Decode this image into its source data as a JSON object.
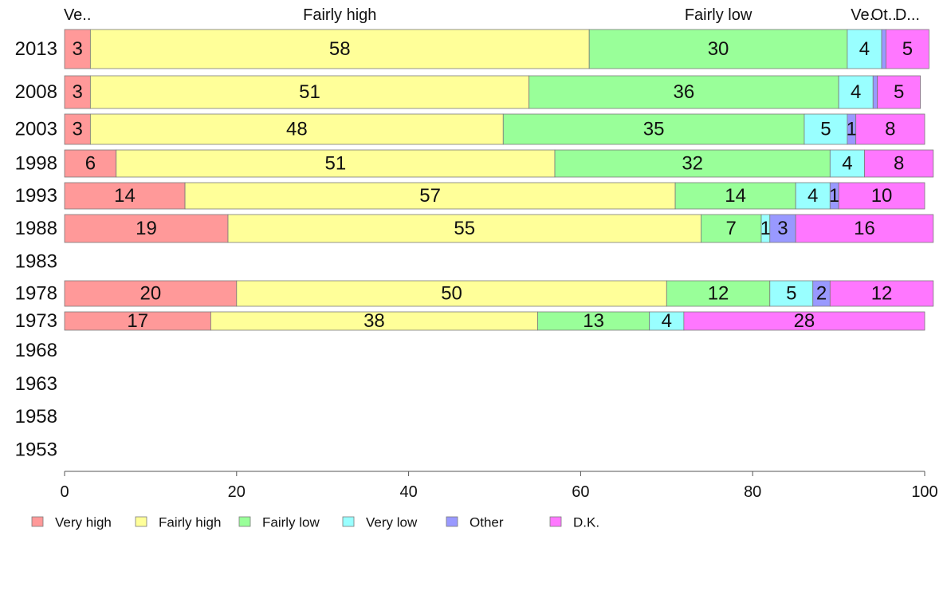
{
  "chart_data": {
    "type": "bar",
    "orientation": "horizontal",
    "stacked": true,
    "title": "",
    "xlabel": "",
    "ylabel": "",
    "xlim": [
      0,
      100
    ],
    "x_ticks": [
      0,
      20,
      40,
      60,
      80,
      100
    ],
    "grid": false,
    "legend_position": "bottom",
    "categories": [
      "2013",
      "2008",
      "2003",
      "1998",
      "1993",
      "1988",
      "1983",
      "1978",
      "1973",
      "1968",
      "1963",
      "1958",
      "1953"
    ],
    "series": [
      {
        "name": "Very high",
        "short_label": "Ve..",
        "color": "#ff9999",
        "values": [
          3,
          3,
          3,
          6,
          14,
          19,
          null,
          20,
          17,
          null,
          null,
          null,
          null
        ]
      },
      {
        "name": "Fairly high",
        "short_label": "Fairly high",
        "color": "#ffff99",
        "values": [
          58,
          51,
          48,
          51,
          57,
          55,
          null,
          50,
          38,
          null,
          null,
          null,
          null
        ]
      },
      {
        "name": "Fairly low",
        "short_label": "Fairly low",
        "color": "#99ff99",
        "values": [
          30,
          36,
          35,
          32,
          14,
          7,
          null,
          12,
          13,
          null,
          null,
          null,
          null
        ]
      },
      {
        "name": "Very low",
        "short_label": "Ve..",
        "color": "#99ffff",
        "values": [
          4,
          4,
          5,
          4,
          4,
          1,
          null,
          5,
          4,
          null,
          null,
          null,
          null
        ]
      },
      {
        "name": "Other",
        "short_label": "Ot..",
        "color": "#9999ff",
        "values": [
          0.5,
          0.5,
          1,
          0,
          1,
          3,
          null,
          2,
          0,
          null,
          null,
          null,
          null
        ]
      },
      {
        "name": "D.K.",
        "short_label": "D...",
        "color": "#ff77ff",
        "values": [
          5,
          5,
          8,
          8,
          10,
          16,
          null,
          12,
          28,
          null,
          null,
          null,
          null
        ]
      }
    ],
    "bar_labels": [
      [
        "3",
        "58",
        "30",
        "4",
        "",
        "5"
      ],
      [
        "3",
        "51",
        "36",
        "4",
        "",
        "5"
      ],
      [
        "3",
        "48",
        "35",
        "5",
        "1",
        "8"
      ],
      [
        "6",
        "51",
        "32",
        "4",
        "",
        "8"
      ],
      [
        "14",
        "57",
        "14",
        "4",
        "1",
        "10"
      ],
      [
        "19",
        "55",
        "7",
        "1",
        "3",
        "16"
      ],
      [],
      [
        "20",
        "50",
        "12",
        "5",
        "2",
        "12"
      ],
      [
        "17",
        "38",
        "13",
        "4",
        "",
        "28"
      ],
      [],
      [],
      [],
      []
    ]
  }
}
